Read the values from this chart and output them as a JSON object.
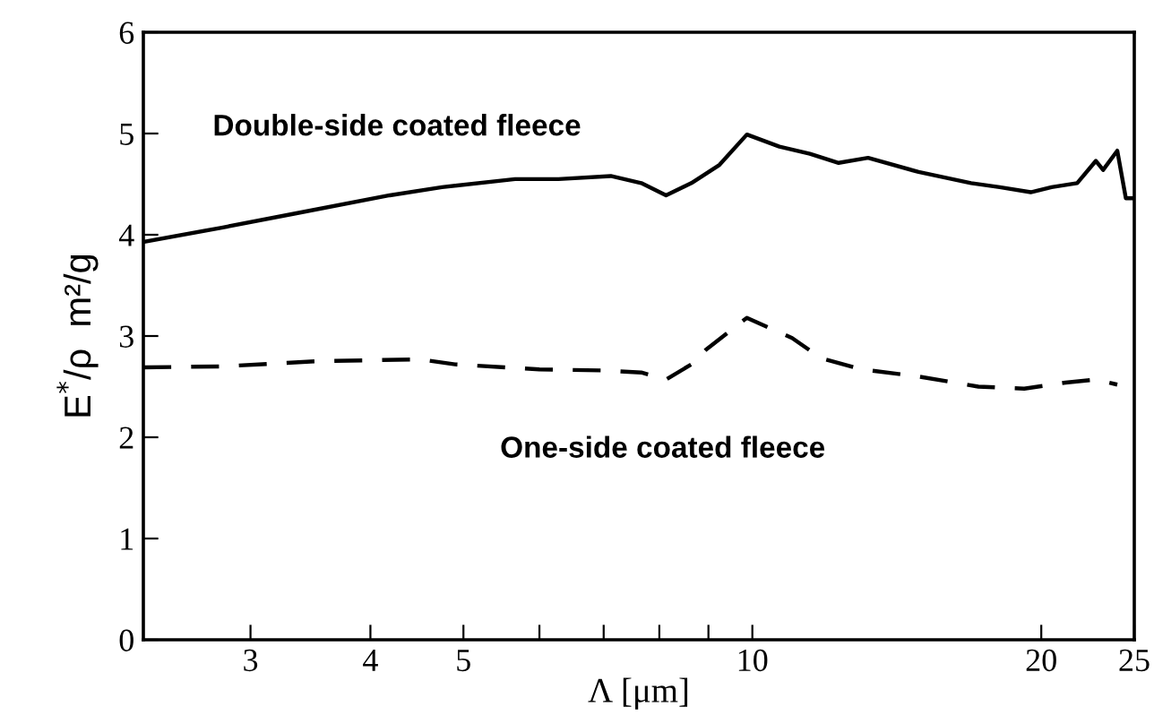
{
  "chart_data": {
    "type": "line",
    "xlabel": "Λ [μm]",
    "ylabel": "E$^{*}$/ρ  m²/g",
    "log": "x",
    "xlim": [
      2.32,
      25
    ],
    "ylim": [
      0,
      6
    ],
    "xticks": [
      3,
      4,
      5,
      {
        "value": 6,
        "label": null
      },
      {
        "value": 7,
        "label": null
      },
      {
        "value": 8,
        "label": null
      },
      {
        "value": 9,
        "label": null
      },
      10,
      20,
      25
    ],
    "yticks": [
      0,
      1,
      2,
      3,
      4,
      5,
      6
    ],
    "grid": false,
    "legend": false,
    "marker": "none",
    "series": [
      {
        "name": "Double-side coated fleece",
        "color": "#000000",
        "line_style": "solid",
        "x": [
          2.32,
          2.8,
          3.34,
          4.19,
          4.75,
          5.66,
          6.28,
          7.12,
          7.66,
          8.13,
          8.64,
          9.24,
          9.87,
          10.67,
          11.48,
          12.3,
          13.2,
          14.9,
          16.9,
          18.1,
          19.5,
          20.5,
          21.8,
          22.8,
          23.2,
          24.0,
          24.5,
          25
        ],
        "values": [
          3.93,
          4.07,
          4.21,
          4.39,
          4.47,
          4.55,
          4.55,
          4.58,
          4.51,
          4.39,
          4.51,
          4.69,
          4.99,
          4.87,
          4.8,
          4.71,
          4.76,
          4.62,
          4.51,
          4.47,
          4.42,
          4.47,
          4.51,
          4.73,
          4.64,
          4.83,
          4.36,
          4.36
        ]
      },
      {
        "name": "One-side coated fleece",
        "color": "#000000",
        "line_style": "dashed",
        "x": [
          2.32,
          2.8,
          3.5,
          4.5,
          4.9,
          6.0,
          7.0,
          7.66,
          8.13,
          8.64,
          8.96,
          9.87,
          11.0,
          11.8,
          13.0,
          14.9,
          17.2,
          19.2,
          21.2,
          22.8,
          24.0
        ],
        "values": [
          2.69,
          2.7,
          2.75,
          2.77,
          2.72,
          2.67,
          2.66,
          2.64,
          2.57,
          2.72,
          2.87,
          3.18,
          2.98,
          2.78,
          2.67,
          2.6,
          2.5,
          2.48,
          2.54,
          2.57,
          2.52
        ]
      }
    ]
  }
}
